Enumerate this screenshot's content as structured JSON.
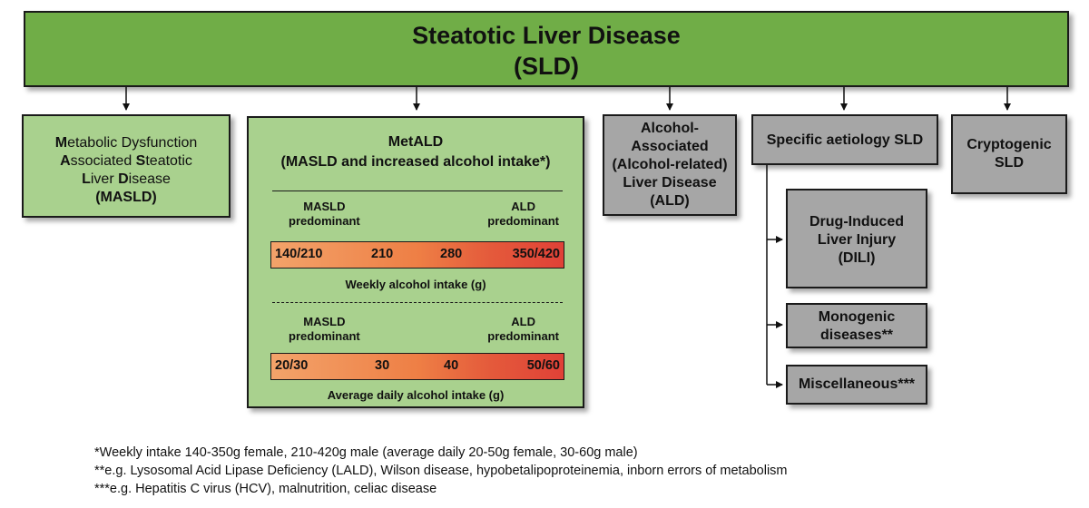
{
  "title": {
    "line1": "Steatotic Liver Disease",
    "line2": "(SLD)"
  },
  "masld": {
    "line1_bold": "M",
    "line1_rest": "etabolic Dysfunction",
    "line2_bold_a": "A",
    "line2_mid": "ssociated ",
    "line2_bold_b": "S",
    "line2_rest": "teatotic",
    "line3_bold_a": "L",
    "line3_mid": "iver ",
    "line3_bold_b": "D",
    "line3_rest": "isease",
    "line4": "(MASLD)"
  },
  "metald": {
    "title": "MetALD",
    "subtitle": "(MASLD and increased alcohol intake*)",
    "weekly": {
      "left_l1": "MASLD",
      "left_l2": "predominant",
      "right_l1": "ALD",
      "right_l2": "predominant",
      "values": [
        "140/210",
        "210",
        "280",
        "350/420"
      ],
      "caption": "Weekly alcohol intake (g)"
    },
    "daily": {
      "left_l1": "MASLD",
      "left_l2": "predominant",
      "right_l1": "ALD",
      "right_l2": "predominant",
      "values": [
        "20/30",
        "30",
        "40",
        "50/60"
      ],
      "caption": "Average daily alcohol intake (g)"
    }
  },
  "ald": {
    "line1": "Alcohol-",
    "line2": "Associated",
    "line3": "(Alcohol-related)",
    "line4": "Liver Disease",
    "line5": "(ALD)"
  },
  "specific": {
    "label": "Specific aetiology SLD"
  },
  "cryptogenic": {
    "line1": "Cryptogenic",
    "line2": "SLD"
  },
  "dili": {
    "line1": "Drug-Induced",
    "line2": "Liver Injury",
    "line3": "(DILI)"
  },
  "monogenic": {
    "line1": "Monogenic",
    "line2": "diseases**"
  },
  "misc": {
    "label": "Miscellaneous***"
  },
  "footnotes": [
    "*Weekly intake 140-350g female, 210-420g male (average daily 20-50g female, 30-60g male)",
    "**e.g. Lysosomal Acid Lipase Deficiency (LALD), Wilson disease, hypobetalipoproteinemia, inborn errors of metabolism",
    "***e.g. Hepatitis C virus (HCV), malnutrition, celiac disease"
  ],
  "colors": {
    "top": "#70ad47",
    "green": "#a9d18e",
    "gray": "#a6a6a6",
    "gradient_start": "#f3a36a",
    "gradient_end": "#e04137"
  }
}
